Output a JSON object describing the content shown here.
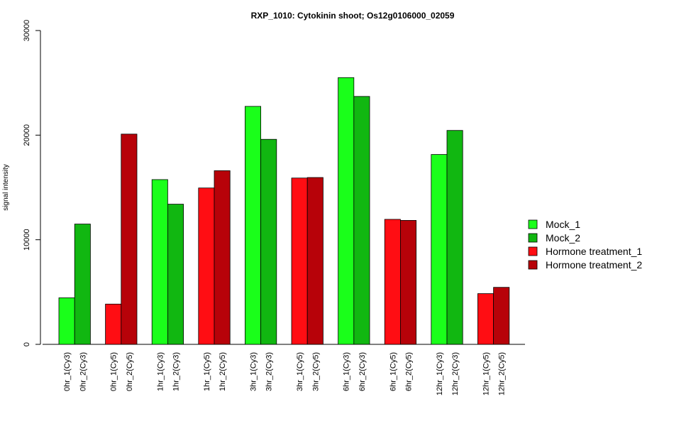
{
  "chart_data": {
    "type": "bar",
    "title": "RXP_1010: Cytokinin shoot; Os12g0106000_02059",
    "xlabel": "",
    "ylabel": "signal intensity",
    "ylim": [
      0,
      30000
    ],
    "yticks": [
      0,
      10000,
      20000,
      30000
    ],
    "bars": [
      {
        "label": "0hr_1(Cy3)",
        "value": 4450,
        "series": 0
      },
      {
        "label": "0hr_2(Cy3)",
        "value": 11500,
        "series": 1
      },
      {
        "label": "0hr_1(Cy5)",
        "value": 3850,
        "series": 2
      },
      {
        "label": "0hr_2(Cy5)",
        "value": 20100,
        "series": 3
      },
      {
        "label": "1hr_1(Cy3)",
        "value": 15750,
        "series": 0
      },
      {
        "label": "1hr_2(Cy3)",
        "value": 13400,
        "series": 1
      },
      {
        "label": "1hr_1(Cy5)",
        "value": 14950,
        "series": 2
      },
      {
        "label": "1hr_2(Cy5)",
        "value": 16600,
        "series": 3
      },
      {
        "label": "3hr_1(Cy3)",
        "value": 22750,
        "series": 0
      },
      {
        "label": "3hr_2(Cy3)",
        "value": 19600,
        "series": 1
      },
      {
        "label": "3hr_1(Cy5)",
        "value": 15900,
        "series": 2
      },
      {
        "label": "3hr_2(Cy5)",
        "value": 15950,
        "series": 3
      },
      {
        "label": "6hr_1(Cy3)",
        "value": 25500,
        "series": 0
      },
      {
        "label": "6hr_2(Cy3)",
        "value": 23700,
        "series": 1
      },
      {
        "label": "6hr_1(Cy5)",
        "value": 11950,
        "series": 2
      },
      {
        "label": "6hr_2(Cy5)",
        "value": 11850,
        "series": 3
      },
      {
        "label": "12hr_1(Cy3)",
        "value": 18150,
        "series": 0
      },
      {
        "label": "12hr_2(Cy3)",
        "value": 20450,
        "series": 1
      },
      {
        "label": "12hr_1(Cy5)",
        "value": 4850,
        "series": 2
      },
      {
        "label": "12hr_2(Cy5)",
        "value": 5450,
        "series": 3
      }
    ],
    "series": [
      {
        "name": "Mock_1",
        "color": "#1aff1a"
      },
      {
        "name": "Mock_2",
        "color": "#11b711"
      },
      {
        "name": "Hormone treatment_1",
        "color": "#ff0d13"
      },
      {
        "name": "Hormone treatment_2",
        "color": "#b70209"
      }
    ],
    "legend_position": "right",
    "grid": false
  }
}
